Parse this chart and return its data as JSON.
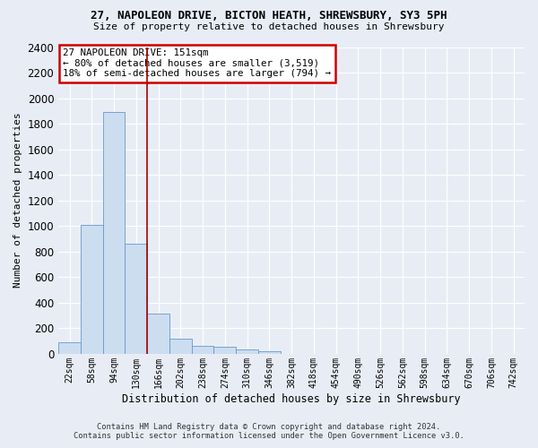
{
  "title": "27, NAPOLEON DRIVE, BICTON HEATH, SHREWSBURY, SY3 5PH",
  "subtitle": "Size of property relative to detached houses in Shrewsbury",
  "xlabel": "Distribution of detached houses by size in Shrewsbury",
  "ylabel": "Number of detached properties",
  "bin_labels": [
    "22sqm",
    "58sqm",
    "94sqm",
    "130sqm",
    "166sqm",
    "202sqm",
    "238sqm",
    "274sqm",
    "310sqm",
    "346sqm",
    "382sqm",
    "418sqm",
    "454sqm",
    "490sqm",
    "526sqm",
    "562sqm",
    "598sqm",
    "634sqm",
    "670sqm",
    "706sqm",
    "742sqm"
  ],
  "bar_values": [
    90,
    1010,
    1890,
    860,
    315,
    115,
    60,
    50,
    30,
    20,
    0,
    0,
    0,
    0,
    0,
    0,
    0,
    0,
    0,
    0,
    0
  ],
  "bar_color": "#ccddf0",
  "bar_edge_color": "#6699cc",
  "vline_pos": 3.5,
  "vline_color": "#aa0000",
  "annotation_text": "27 NAPOLEON DRIVE: 151sqm\n← 80% of detached houses are smaller (3,519)\n18% of semi-detached houses are larger (794) →",
  "ann_box_facecolor": "#ffffff",
  "ann_box_edgecolor": "#cc0000",
  "ylim": [
    0,
    2400
  ],
  "yticks": [
    0,
    200,
    400,
    600,
    800,
    1000,
    1200,
    1400,
    1600,
    1800,
    2000,
    2200,
    2400
  ],
  "bg_color": "#e8edf5",
  "grid_color": "#ffffff",
  "footer1": "Contains HM Land Registry data © Crown copyright and database right 2024.",
  "footer2": "Contains public sector information licensed under the Open Government Licence v3.0."
}
